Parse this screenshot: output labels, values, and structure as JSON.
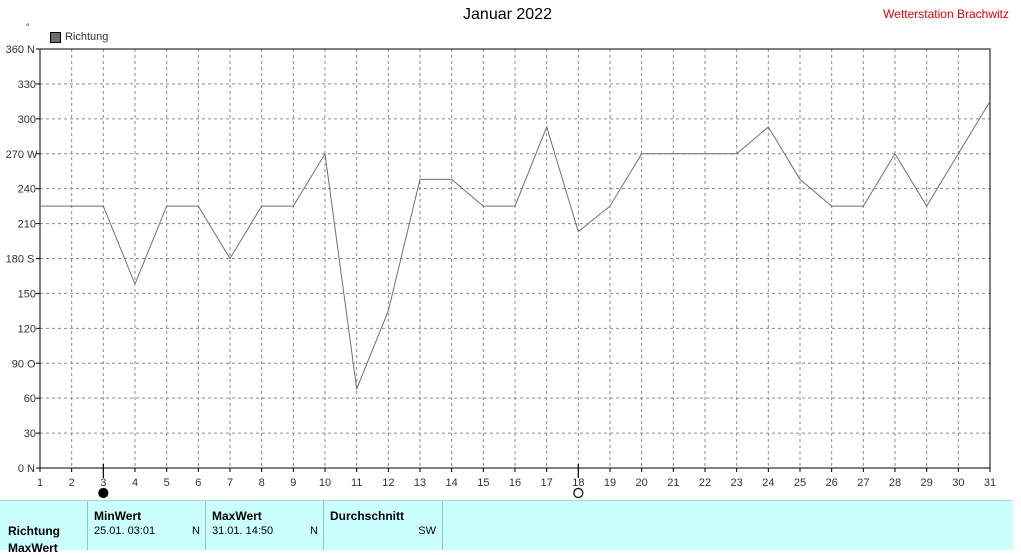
{
  "header": {
    "title": "Januar 2022",
    "station": "Wetterstation Brachwitz",
    "legend_label": "Richtung",
    "unit_mark": "°"
  },
  "chart_data": {
    "type": "line",
    "title": "Januar 2022",
    "x": [
      1,
      2,
      3,
      4,
      5,
      6,
      7,
      8,
      9,
      10,
      11,
      12,
      13,
      14,
      15,
      16,
      17,
      18,
      19,
      20,
      21,
      22,
      23,
      24,
      25,
      26,
      27,
      28,
      29,
      30,
      31
    ],
    "series": [
      {
        "name": "Richtung",
        "values": [
          225,
          225,
          225,
          158,
          225,
          225,
          180,
          225,
          225,
          270,
          68,
          135,
          248,
          248,
          225,
          225,
          293,
          203,
          225,
          270,
          270,
          270,
          270,
          293,
          248,
          225,
          225,
          270,
          225,
          270,
          315
        ]
      }
    ],
    "ylim": [
      0,
      360
    ],
    "y_ticks": [
      {
        "value": 0,
        "label": "0",
        "dir": "N"
      },
      {
        "value": 30,
        "label": "30",
        "dir": ""
      },
      {
        "value": 60,
        "label": "60",
        "dir": ""
      },
      {
        "value": 90,
        "label": "90",
        "dir": "O"
      },
      {
        "value": 120,
        "label": "120",
        "dir": ""
      },
      {
        "value": 150,
        "label": "150",
        "dir": ""
      },
      {
        "value": 180,
        "label": "180",
        "dir": "S"
      },
      {
        "value": 210,
        "label": "210",
        "dir": ""
      },
      {
        "value": 240,
        "label": "240",
        "dir": ""
      },
      {
        "value": 270,
        "label": "270",
        "dir": "W"
      },
      {
        "value": 300,
        "label": "300",
        "dir": ""
      },
      {
        "value": 330,
        "label": "330",
        "dir": ""
      },
      {
        "value": 360,
        "label": "360",
        "dir": "N"
      }
    ],
    "x_ticks": [
      "1",
      "2",
      "3",
      "4",
      "5",
      "6",
      "7",
      "8",
      "9",
      "10",
      "11",
      "12",
      "13",
      "14",
      "15",
      "16",
      "17",
      "18",
      "19",
      "20",
      "21",
      "22",
      "23",
      "24",
      "25",
      "26",
      "27",
      "28",
      "29",
      "30",
      "31"
    ],
    "grid": true,
    "markers": [
      {
        "x": 3,
        "kind": "filled"
      },
      {
        "x": 18,
        "kind": "open"
      }
    ],
    "colors": {
      "line": "#707070",
      "grid": "#8a8a8a",
      "axis": "#000000"
    }
  },
  "stats": {
    "row_label": "Richtung",
    "row_label_2": "MaxWert",
    "min": {
      "head": "MinWert",
      "value": "25.01.  03:01",
      "dir": "N"
    },
    "max": {
      "head": "MaxWert",
      "value": "31.01.  14:50",
      "dir": "N"
    },
    "avg": {
      "head": "Durchschnitt",
      "value": "",
      "dir": "SW"
    }
  }
}
